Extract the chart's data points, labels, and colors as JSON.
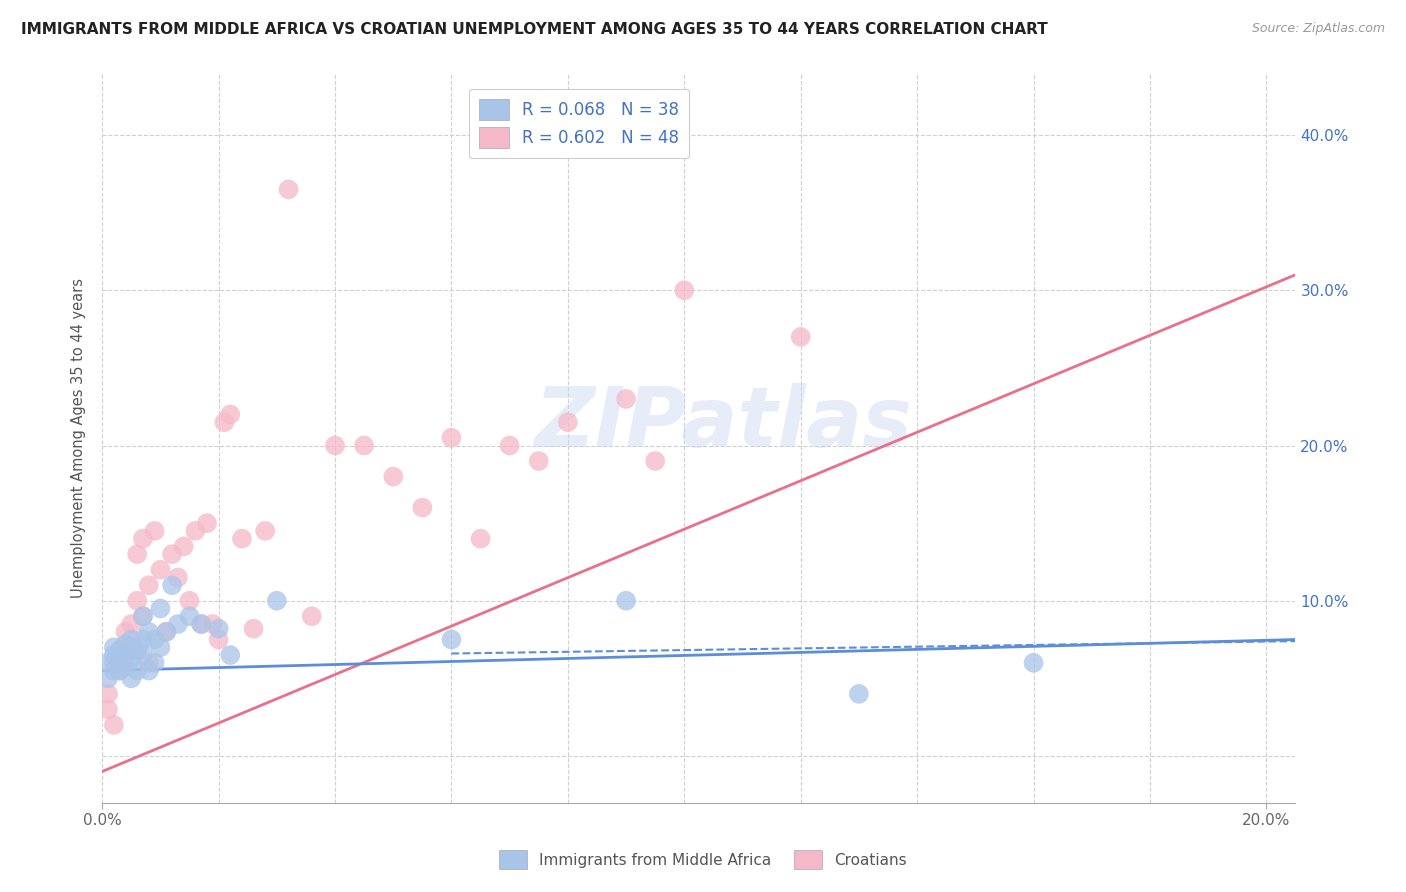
{
  "title": "IMMIGRANTS FROM MIDDLE AFRICA VS CROATIAN UNEMPLOYMENT AMONG AGES 35 TO 44 YEARS CORRELATION CHART",
  "source": "Source: ZipAtlas.com",
  "ylabel": "Unemployment Among Ages 35 to 44 years",
  "xlim": [
    0.0,
    0.205
  ],
  "ylim": [
    -0.03,
    0.44
  ],
  "xticks": [
    0.0,
    0.02,
    0.04,
    0.06,
    0.08,
    0.1,
    0.12,
    0.14,
    0.16,
    0.18,
    0.2
  ],
  "yticks": [
    0.0,
    0.1,
    0.2,
    0.3,
    0.4
  ],
  "yticklabels_right": [
    "",
    "10.0%",
    "20.0%",
    "30.0%",
    "40.0%"
  ],
  "legend_r1": "R = 0.068   N = 38",
  "legend_r2": "R = 0.602   N = 48",
  "color_blue": "#a8c4e8",
  "color_pink": "#f5b8c8",
  "color_blue_line": "#5b8dd9",
  "color_pink_line": "#e8708a",
  "color_blue_text": "#4472c4",
  "watermark_text": "ZIPatlas",
  "blue_scatter_x": [
    0.001,
    0.001,
    0.002,
    0.002,
    0.002,
    0.003,
    0.003,
    0.003,
    0.004,
    0.004,
    0.004,
    0.005,
    0.005,
    0.005,
    0.006,
    0.006,
    0.006,
    0.007,
    0.007,
    0.007,
    0.008,
    0.008,
    0.009,
    0.009,
    0.01,
    0.01,
    0.011,
    0.012,
    0.013,
    0.015,
    0.017,
    0.02,
    0.022,
    0.03,
    0.06,
    0.09,
    0.13,
    0.16
  ],
  "blue_scatter_y": [
    0.05,
    0.06,
    0.055,
    0.07,
    0.065,
    0.06,
    0.068,
    0.055,
    0.065,
    0.072,
    0.058,
    0.062,
    0.075,
    0.05,
    0.068,
    0.055,
    0.07,
    0.065,
    0.09,
    0.075,
    0.08,
    0.055,
    0.075,
    0.06,
    0.095,
    0.07,
    0.08,
    0.11,
    0.085,
    0.09,
    0.085,
    0.082,
    0.065,
    0.1,
    0.075,
    0.1,
    0.04,
    0.06
  ],
  "pink_scatter_x": [
    0.001,
    0.001,
    0.002,
    0.002,
    0.003,
    0.003,
    0.004,
    0.004,
    0.005,
    0.005,
    0.006,
    0.006,
    0.007,
    0.007,
    0.008,
    0.008,
    0.009,
    0.01,
    0.011,
    0.012,
    0.013,
    0.014,
    0.015,
    0.016,
    0.017,
    0.018,
    0.019,
    0.02,
    0.021,
    0.022,
    0.024,
    0.026,
    0.028,
    0.032,
    0.036,
    0.04,
    0.045,
    0.05,
    0.055,
    0.06,
    0.065,
    0.07,
    0.075,
    0.08,
    0.09,
    0.095,
    0.1,
    0.12
  ],
  "pink_scatter_y": [
    0.04,
    0.03,
    0.06,
    0.02,
    0.06,
    0.055,
    0.065,
    0.08,
    0.085,
    0.068,
    0.1,
    0.13,
    0.09,
    0.14,
    0.11,
    0.06,
    0.145,
    0.12,
    0.08,
    0.13,
    0.115,
    0.135,
    0.1,
    0.145,
    0.085,
    0.15,
    0.085,
    0.075,
    0.215,
    0.22,
    0.14,
    0.082,
    0.145,
    0.365,
    0.09,
    0.2,
    0.2,
    0.18,
    0.16,
    0.205,
    0.14,
    0.2,
    0.19,
    0.215,
    0.23,
    0.19,
    0.3,
    0.27
  ],
  "blue_trend_x": [
    0.0,
    0.205
  ],
  "blue_trend_y": [
    0.055,
    0.075
  ],
  "pink_trend_x": [
    0.0,
    0.205
  ],
  "pink_trend_y": [
    -0.01,
    0.31
  ],
  "background_color": "#ffffff",
  "grid_color": "#d0d0d0"
}
